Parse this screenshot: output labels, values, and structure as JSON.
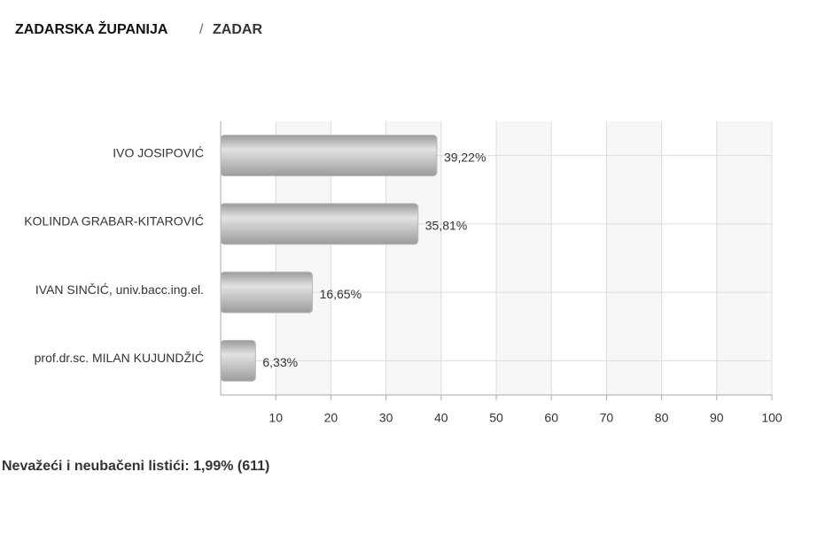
{
  "header": {
    "region": "ZADARSKA ŽUPANIJA",
    "separator": "/",
    "city": "ZADAR"
  },
  "chart_data": {
    "type": "bar",
    "orientation": "horizontal",
    "categories": [
      "IVO JOSIPOVIĆ",
      "KOLINDA GRABAR-KITAROVIĆ",
      "IVAN SINČIĆ, univ.bacc.ing.el.",
      "prof.dr.sc. MILAN KUJUNDŽIĆ"
    ],
    "values": [
      39.22,
      35.81,
      16.65,
      6.33
    ],
    "value_labels": [
      "39,22%",
      "35,81%",
      "16,65%",
      "6,33%"
    ],
    "color": "#b8b8b8",
    "xlim": [
      0,
      100
    ],
    "xticks": [
      10,
      20,
      30,
      40,
      50,
      60,
      70,
      80,
      90,
      100
    ],
    "grid": true
  },
  "footer": "Nevažeći i neubačeni listići: 1,99% (611)"
}
